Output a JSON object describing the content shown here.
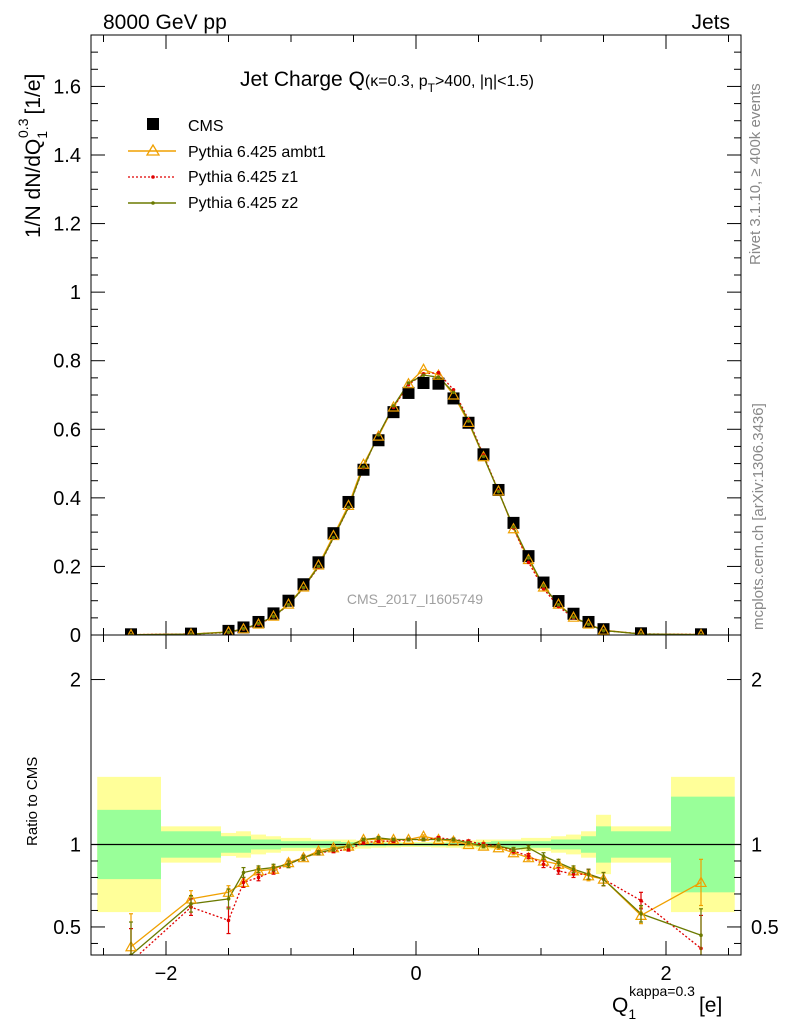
{
  "header": {
    "left": "8000 GeV pp",
    "right": "Jets"
  },
  "side_labels": {
    "rivet": "Rivet 3.1.10, ≥ 400k events",
    "mcplots": "mcplots.cern.ch [arXiv:1306.3436]"
  },
  "watermark": "CMS_2017_I1605749",
  "colors": {
    "cms": "#000000",
    "ambt1": "#f0a000",
    "z1": "#e00000",
    "z2": "#6b7a00",
    "band_inner": "#99ff99",
    "band_outer": "#ffff99"
  },
  "chart_data": [
    {
      "type": "scatter",
      "panel": "main",
      "title_main": "Jet Charge Q",
      "title_sub": "(κ=0.3, p",
      "title_sub_sub": "T",
      "title_sub_rest": ">400, |η|<1.5)",
      "ylabel": "1/N dN/dQ",
      "ylabel_sup": "0.3",
      "ylabel_sub": "1",
      "ylabel_unit": "[1/e]",
      "xlim": [
        -2.6,
        2.6
      ],
      "ylim": [
        0,
        1.75
      ],
      "yticks": [
        0,
        0.2,
        0.4,
        0.6,
        0.8,
        1,
        1.2,
        1.4,
        1.6
      ],
      "ytick_labels": [
        "0",
        "0.2",
        "0.4",
        "0.6",
        "0.8",
        "1",
        "1.2",
        "1.4",
        "1.6"
      ],
      "legend_position": "top-left",
      "x": [
        -2.28,
        -1.8,
        -1.5,
        -1.38,
        -1.26,
        -1.14,
        -1.02,
        -0.9,
        -0.78,
        -0.66,
        -0.54,
        -0.42,
        -0.3,
        -0.18,
        -0.06,
        0.06,
        0.18,
        0.3,
        0.42,
        0.54,
        0.66,
        0.78,
        0.9,
        1.02,
        1.14,
        1.26,
        1.38,
        1.5,
        1.8,
        2.28
      ],
      "series": [
        {
          "name": "CMS",
          "values": [
            0.002,
            0.004,
            0.012,
            0.022,
            0.038,
            0.063,
            0.1,
            0.148,
            0.212,
            0.297,
            0.388,
            0.482,
            0.568,
            0.65,
            0.706,
            0.735,
            0.733,
            0.69,
            0.619,
            0.527,
            0.423,
            0.327,
            0.23,
            0.153,
            0.099,
            0.062,
            0.038,
            0.017,
            0.005,
            0.002
          ]
        },
        {
          "name": "Pythia 6.425 ambt1",
          "values": [
            0.001,
            0.003,
            0.009,
            0.018,
            0.032,
            0.055,
            0.09,
            0.14,
            0.204,
            0.29,
            0.378,
            0.498,
            0.58,
            0.665,
            0.733,
            0.775,
            0.758,
            0.7,
            0.62,
            0.52,
            0.42,
            0.31,
            0.22,
            0.14,
            0.09,
            0.052,
            0.032,
            0.014,
            0.003,
            0.0015
          ]
        },
        {
          "name": "Pythia 6.425 z1",
          "values": [
            0.0009,
            0.003,
            0.007,
            0.017,
            0.031,
            0.053,
            0.088,
            0.137,
            0.198,
            0.283,
            0.371,
            0.488,
            0.585,
            0.664,
            0.73,
            0.762,
            0.765,
            0.715,
            0.628,
            0.525,
            0.42,
            0.312,
            0.212,
            0.135,
            0.083,
            0.05,
            0.031,
            0.013,
            0.0033,
            0.0013
          ]
        },
        {
          "name": "Pythia 6.425 z2",
          "values": [
            0.0007,
            0.0026,
            0.008,
            0.018,
            0.033,
            0.054,
            0.088,
            0.138,
            0.2,
            0.284,
            0.372,
            0.49,
            0.584,
            0.668,
            0.735,
            0.758,
            0.752,
            0.708,
            0.624,
            0.521,
            0.418,
            0.315,
            0.225,
            0.143,
            0.088,
            0.052,
            0.031,
            0.013,
            0.0029,
            0.0009
          ]
        }
      ]
    },
    {
      "type": "line",
      "panel": "ratio",
      "ylabel": "Ratio to CMS",
      "xlabel": "Q",
      "xlabel_sub": "1",
      "xlabel_sup": "kappa=0.3",
      "xlabel_unit": "[e]",
      "xlim": [
        -2.6,
        2.6
      ],
      "ylim": [
        0.33,
        2.27
      ],
      "xticks": [
        -2,
        0,
        2
      ],
      "xtick_labels": [
        "−2",
        "0",
        "2"
      ],
      "yticks": [
        0.5,
        1,
        2
      ],
      "ytick_labels": [
        "0.5",
        "1",
        "2"
      ],
      "bins": [
        [
          -2.55,
          -2.04,
          0.21,
          0.41
        ],
        [
          -2.04,
          -1.56,
          0.08,
          0.11
        ],
        [
          -1.56,
          -1.44,
          0.05,
          0.07
        ],
        [
          -1.44,
          -1.32,
          0.05,
          0.08
        ],
        [
          -1.32,
          -1.2,
          0.03,
          0.06
        ],
        [
          -1.2,
          -1.08,
          0.03,
          0.05
        ],
        [
          -1.08,
          -0.96,
          0.02,
          0.04
        ],
        [
          -0.96,
          -0.84,
          0.02,
          0.04
        ],
        [
          -0.84,
          -0.72,
          0.02,
          0.03
        ],
        [
          -0.72,
          -0.6,
          0.02,
          0.03
        ],
        [
          -0.6,
          -0.48,
          0.015,
          0.03
        ],
        [
          -0.48,
          -0.36,
          0.01,
          0.025
        ],
        [
          -0.36,
          -0.24,
          0.01,
          0.02
        ],
        [
          -0.24,
          -0.12,
          0.008,
          0.018
        ],
        [
          -0.12,
          0.0,
          0.007,
          0.015
        ],
        [
          0.0,
          0.12,
          0.007,
          0.015
        ],
        [
          0.12,
          0.24,
          0.008,
          0.018
        ],
        [
          0.24,
          0.36,
          0.01,
          0.02
        ],
        [
          0.36,
          0.48,
          0.01,
          0.025
        ],
        [
          0.48,
          0.6,
          0.015,
          0.03
        ],
        [
          0.6,
          0.72,
          0.02,
          0.03
        ],
        [
          0.72,
          0.84,
          0.02,
          0.03
        ],
        [
          0.84,
          0.96,
          0.02,
          0.04
        ],
        [
          0.96,
          1.08,
          0.02,
          0.04
        ],
        [
          1.08,
          1.2,
          0.03,
          0.05
        ],
        [
          1.2,
          1.32,
          0.03,
          0.06
        ],
        [
          1.32,
          1.44,
          0.05,
          0.08
        ],
        [
          1.44,
          1.56,
          0.11,
          0.18
        ],
        [
          1.56,
          2.04,
          0.08,
          0.11
        ],
        [
          2.04,
          2.55,
          0.29,
          0.41
        ]
      ],
      "x": [
        -2.28,
        -1.8,
        -1.5,
        -1.38,
        -1.26,
        -1.14,
        -1.02,
        -0.9,
        -0.78,
        -0.66,
        -0.54,
        -0.42,
        -0.3,
        -0.18,
        -0.06,
        0.06,
        0.18,
        0.3,
        0.42,
        0.54,
        0.66,
        0.78,
        0.9,
        1.02,
        1.14,
        1.26,
        1.38,
        1.5,
        1.8,
        2.28
      ],
      "series": [
        {
          "name": "Pythia 6.425 ambt1",
          "values": [
            0.38,
            0.67,
            0.71,
            0.77,
            0.84,
            0.85,
            0.89,
            0.92,
            0.96,
            0.98,
            0.99,
            1.03,
            1.03,
            1.03,
            1.03,
            1.05,
            1.03,
            1.02,
            1.0,
            0.99,
            0.98,
            0.95,
            0.92,
            0.9,
            0.88,
            0.84,
            0.81,
            0.79,
            0.57,
            0.77
          ],
          "err": [
            0.2,
            0.05,
            0.04,
            0.03,
            0.02,
            0.02,
            0.02,
            0.015,
            0.012,
            0.01,
            0.01,
            0.008,
            0.008,
            0.008,
            0.008,
            0.008,
            0.008,
            0.008,
            0.008,
            0.01,
            0.01,
            0.012,
            0.015,
            0.02,
            0.02,
            0.02,
            0.03,
            0.04,
            0.05,
            0.14
          ]
        },
        {
          "name": "Pythia 6.425 z1",
          "values": [
            0.29,
            0.62,
            0.54,
            0.77,
            0.8,
            0.84,
            0.88,
            0.92,
            0.95,
            0.96,
            0.97,
            1.01,
            1.02,
            1.02,
            1.03,
            1.03,
            1.04,
            1.03,
            1.02,
            1.0,
            0.99,
            0.96,
            0.93,
            0.88,
            0.84,
            0.82,
            0.82,
            0.79,
            0.66,
            0.37
          ],
          "err": [
            0.2,
            0.05,
            0.08,
            0.03,
            0.02,
            0.02,
            0.02,
            0.015,
            0.012,
            0.01,
            0.01,
            0.008,
            0.008,
            0.008,
            0.008,
            0.008,
            0.008,
            0.008,
            0.008,
            0.01,
            0.01,
            0.012,
            0.015,
            0.02,
            0.02,
            0.02,
            0.03,
            0.04,
            0.05,
            0.2
          ]
        },
        {
          "name": "Pythia 6.425 z2",
          "values": [
            0.33,
            0.64,
            0.67,
            0.83,
            0.85,
            0.86,
            0.88,
            0.92,
            0.95,
            0.97,
            0.99,
            1.03,
            1.04,
            1.03,
            1.03,
            1.03,
            1.03,
            1.03,
            1.01,
            0.99,
            0.99,
            0.97,
            0.98,
            0.93,
            0.89,
            0.85,
            0.82,
            0.79,
            0.58,
            0.45
          ],
          "err": [
            0.2,
            0.05,
            0.06,
            0.03,
            0.02,
            0.02,
            0.02,
            0.015,
            0.012,
            0.01,
            0.01,
            0.008,
            0.008,
            0.008,
            0.008,
            0.008,
            0.008,
            0.008,
            0.008,
            0.01,
            0.01,
            0.012,
            0.015,
            0.02,
            0.02,
            0.02,
            0.03,
            0.04,
            0.05,
            0.16
          ]
        }
      ]
    }
  ]
}
